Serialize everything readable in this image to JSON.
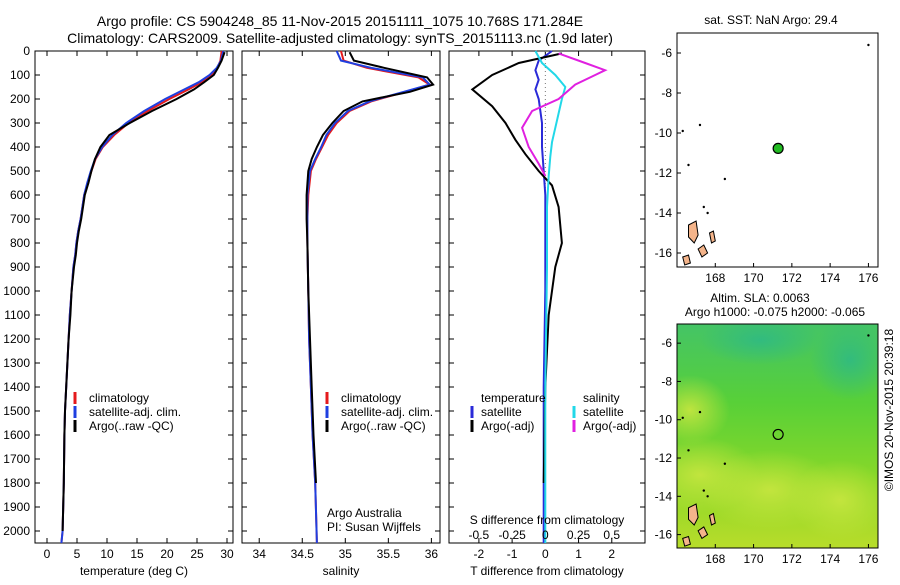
{
  "header": {
    "title_line1": "Argo profile: CS 5904248_85 11-Nov-2015 20151111_1075 10.768S 171.284E",
    "title_line2": "Climatology: CARS2009. Satellite-adjusted climatology: synTS_20151113.nc (1.9d later)"
  },
  "footer": {
    "credit": "©IMOS 20-Nov-2015 20:39:18",
    "institution_line1": "Argo Australia",
    "institution_line2": "PI: Susan Wijffels"
  },
  "colors": {
    "climatology": "#e41a1c",
    "satellite": "#1f3fe0",
    "argo": "#000000",
    "temp_sat_diff": "#2a2ad8",
    "sal_sat_diff": "#22d8e8",
    "sal_argo_diff": "#e020e0",
    "float_marker": "#22bb22",
    "land": "#f4b48a"
  },
  "chart_data": [
    {
      "id": "temperature",
      "type": "line",
      "xlabel": "temperature (deg C)",
      "ylabel": "",
      "xlim": [
        -2,
        31
      ],
      "ylim": [
        2050,
        0
      ],
      "xticks": [
        0,
        5,
        10,
        15,
        20,
        25,
        30
      ],
      "yticks": [
        0,
        100,
        200,
        300,
        400,
        500,
        600,
        700,
        800,
        900,
        1000,
        1100,
        1200,
        1300,
        1400,
        1500,
        1600,
        1700,
        1800,
        1900,
        2000
      ],
      "legend": [
        "climatology",
        "satellite-adj. clim.",
        "Argo(..raw -QC)"
      ],
      "series": [
        {
          "name": "climatology",
          "x": [
            29.1,
            28.9,
            28.4,
            27.4,
            25.8,
            23.6,
            20.4,
            16.8,
            13.6,
            11.2,
            9.3,
            8.1,
            7.4,
            6.8,
            6.2,
            5.9,
            5.6,
            5.2,
            4.9,
            4.7,
            4.4,
            4.1,
            3.8,
            3.6,
            3.4,
            3.2,
            3.0,
            2.9,
            2.8,
            2.6,
            2.4
          ],
          "y": [
            0,
            40,
            70,
            100,
            130,
            160,
            200,
            250,
            300,
            350,
            400,
            450,
            500,
            550,
            600,
            650,
            700,
            750,
            800,
            850,
            900,
            1000,
            1100,
            1200,
            1300,
            1400,
            1500,
            1600,
            1800,
            2000,
            2050
          ]
        },
        {
          "name": "satellite-adj. clim.",
          "x": [
            29.4,
            29.0,
            28.3,
            27.1,
            25.3,
            22.9,
            19.7,
            16.2,
            13.2,
            10.9,
            9.2,
            8.0,
            7.3,
            6.7,
            6.2,
            5.9,
            5.6,
            5.2,
            4.9,
            4.7,
            4.4,
            4.1,
            3.8,
            3.6,
            3.4,
            3.2,
            3.0,
            2.9,
            2.8,
            2.6,
            2.4
          ],
          "y": [
            0,
            40,
            70,
            100,
            130,
            160,
            200,
            250,
            300,
            350,
            400,
            450,
            500,
            550,
            600,
            650,
            700,
            750,
            800,
            850,
            900,
            1000,
            1100,
            1200,
            1300,
            1400,
            1500,
            1600,
            1800,
            2000,
            2050
          ]
        },
        {
          "name": "Argo(..raw -QC)",
          "x": [
            29.6,
            29.1,
            28.5,
            27.8,
            26.2,
            24.5,
            21.6,
            17.5,
            13.8,
            10.4,
            8.9,
            8.0,
            7.4,
            6.9,
            6.3,
            6.0,
            5.7,
            5.3,
            5.0,
            4.8,
            4.5,
            4.1,
            3.9,
            3.6,
            3.4,
            3.2,
            3.0,
            2.9,
            2.8,
            2.6
          ],
          "y": [
            5,
            40,
            70,
            100,
            130,
            160,
            200,
            250,
            300,
            350,
            400,
            450,
            500,
            550,
            600,
            650,
            700,
            750,
            800,
            850,
            900,
            1000,
            1100,
            1200,
            1300,
            1400,
            1500,
            1600,
            1800,
            2000
          ]
        }
      ]
    },
    {
      "id": "salinity",
      "type": "line",
      "xlabel": "salinity",
      "ylabel": "",
      "xlim": [
        33.8,
        36.1
      ],
      "ylim": [
        2050,
        0
      ],
      "xticks": [
        34,
        34.5,
        35,
        35.5,
        36
      ],
      "legend": [
        "climatology",
        "satellite-adj. clim.",
        "Argo(..raw -QC)"
      ],
      "series": [
        {
          "name": "climatology",
          "x": [
            34.95,
            34.98,
            35.25,
            35.85,
            35.98,
            35.7,
            35.3,
            35.05,
            34.9,
            34.8,
            34.73,
            34.66,
            34.6,
            34.57,
            34.56,
            34.56,
            34.57,
            34.58,
            34.6,
            34.62,
            34.65,
            34.67
          ],
          "y": [
            0,
            40,
            70,
            110,
            140,
            170,
            210,
            250,
            300,
            350,
            400,
            450,
            500,
            600,
            700,
            800,
            1000,
            1200,
            1400,
            1600,
            1800,
            2050
          ]
        },
        {
          "name": "satellite-adj. clim.",
          "x": [
            34.9,
            34.95,
            35.3,
            35.9,
            35.98,
            35.68,
            35.28,
            35.03,
            34.88,
            34.78,
            34.72,
            34.65,
            34.59,
            34.56,
            34.56,
            34.56,
            34.57,
            34.58,
            34.6,
            34.62,
            34.65,
            34.67
          ],
          "y": [
            0,
            40,
            70,
            110,
            140,
            170,
            210,
            250,
            300,
            350,
            400,
            450,
            500,
            600,
            700,
            800,
            1000,
            1200,
            1400,
            1600,
            1800,
            2050
          ]
        },
        {
          "name": "Argo(..raw -QC)",
          "x": [
            35.05,
            35.1,
            35.45,
            35.95,
            36.02,
            35.75,
            35.2,
            34.98,
            34.85,
            34.74,
            34.67,
            34.61,
            34.57,
            34.55,
            34.55,
            34.56,
            34.57,
            34.59,
            34.61,
            34.63,
            34.66
          ],
          "y": [
            5,
            40,
            70,
            110,
            140,
            170,
            210,
            250,
            300,
            350,
            400,
            450,
            500,
            600,
            700,
            800,
            1000,
            1200,
            1400,
            1600,
            1800
          ]
        }
      ]
    },
    {
      "id": "differences",
      "type": "line",
      "xlabel": "T difference from climatology",
      "xlabel_top": "S difference from climatology",
      "xlim": [
        -2.9,
        3.0
      ],
      "ylim": [
        2050,
        0
      ],
      "xticks": [
        -2,
        -1,
        0,
        1,
        2
      ],
      "xticks_s": [
        -0.5,
        -0.25,
        0,
        0.25,
        0.5
      ],
      "s_tick_labels": [
        "-0.5",
        "-0.25",
        "0",
        "0.25",
        "0.5"
      ],
      "legend_temperature_header": "temperature",
      "legend_salinity_header": "salinity",
      "legend": [
        "satellite",
        "Argo(-adj)",
        "satellite",
        "Argo(-adj)"
      ],
      "series": [
        {
          "name": "temperature satellite",
          "x": [
            0.2,
            -0.2,
            -0.3,
            -0.2,
            -0.3,
            -0.2,
            -0.1,
            -0.1,
            -0.05,
            0.0,
            0.0,
            0.0,
            -0.05,
            -0.05,
            -0.05
          ],
          "y": [
            0,
            40,
            80,
            120,
            160,
            200,
            300,
            400,
            500,
            600,
            800,
            1000,
            1400,
            1800,
            2050
          ]
        },
        {
          "name": "temperature Argo(-adj)",
          "x": [
            0.5,
            -0.8,
            -1.6,
            -2.2,
            -1.6,
            -1.2,
            -0.9,
            -0.6,
            -0.2,
            0.2,
            0.4,
            0.5,
            0.3,
            0.1,
            0.0,
            -0.05
          ],
          "y": [
            10,
            50,
            100,
            160,
            230,
            300,
            370,
            430,
            500,
            560,
            650,
            800,
            900,
            1100,
            1400,
            1800
          ]
        },
        {
          "name": "salinity satellite",
          "x": [
            -0.3,
            -0.1,
            0.3,
            0.6,
            0.5,
            0.4,
            0.3,
            0.2,
            0.15,
            0.1,
            0.05,
            0.05,
            0.0,
            0.0
          ],
          "y": [
            0,
            50,
            100,
            150,
            200,
            260,
            320,
            380,
            440,
            520,
            650,
            900,
            1400,
            2050
          ]
        },
        {
          "name": "salinity Argo(-adj)",
          "x": [
            0.4,
            1.2,
            1.8,
            1.5,
            0.9,
            0.4,
            -0.4,
            -0.7,
            -0.5,
            -0.2,
            0.0
          ],
          "y": [
            10,
            50,
            80,
            100,
            140,
            200,
            250,
            320,
            400,
            470,
            520
          ]
        }
      ]
    },
    {
      "id": "sst_map",
      "type": "scatter",
      "title": "sat. SST: NaN Argo: 29.4",
      "xlim": [
        166.0,
        176.5
      ],
      "ylim": [
        -16.7,
        -5.0
      ],
      "xticks": [
        168,
        170,
        172,
        174,
        176
      ],
      "yticks": [
        -6,
        -8,
        -10,
        -12,
        -14,
        -16
      ],
      "float_position": {
        "lon": 171.284,
        "lat": -10.768
      }
    },
    {
      "id": "sla_map",
      "type": "heatmap",
      "title_line1": "Altim. SLA: 0.0063",
      "title_line2": "Argo h1000: -0.075 h2000: -0.065",
      "xlim": [
        166.0,
        176.5
      ],
      "ylim": [
        -16.7,
        -5.0
      ],
      "xticks": [
        168,
        170,
        172,
        174,
        176
      ],
      "yticks": [
        -6,
        -8,
        -10,
        -12,
        -14,
        -16
      ],
      "float_position": {
        "lon": 171.284,
        "lat": -10.768
      }
    }
  ]
}
